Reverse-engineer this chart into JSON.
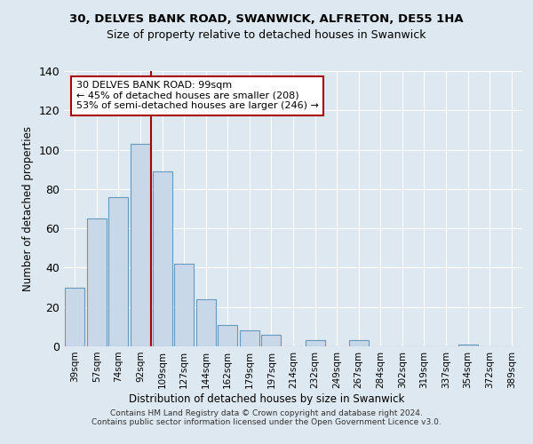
{
  "title": "30, DELVES BANK ROAD, SWANWICK, ALFRETON, DE55 1HA",
  "subtitle": "Size of property relative to detached houses in Swanwick",
  "xlabel": "Distribution of detached houses by size in Swanwick",
  "ylabel": "Number of detached properties",
  "bar_labels": [
    "39sqm",
    "57sqm",
    "74sqm",
    "92sqm",
    "109sqm",
    "127sqm",
    "144sqm",
    "162sqm",
    "179sqm",
    "197sqm",
    "214sqm",
    "232sqm",
    "249sqm",
    "267sqm",
    "284sqm",
    "302sqm",
    "319sqm",
    "337sqm",
    "354sqm",
    "372sqm",
    "389sqm"
  ],
  "bar_values": [
    30,
    65,
    76,
    103,
    89,
    42,
    24,
    11,
    8,
    6,
    0,
    3,
    0,
    3,
    0,
    0,
    0,
    0,
    1,
    0,
    0
  ],
  "bar_color": "#c8d8e8",
  "bar_edge_color": "#6699bb",
  "ylim": [
    0,
    140
  ],
  "yticks": [
    0,
    20,
    40,
    60,
    80,
    100,
    120,
    140
  ],
  "vline_index": 3.5,
  "vline_color": "#aa0000",
  "annotation_title": "30 DELVES BANK ROAD: 99sqm",
  "annotation_line1": "← 45% of detached houses are smaller (208)",
  "annotation_line2": "53% of semi-detached houses are larger (246) →",
  "annotation_box_color": "#ffffff",
  "annotation_box_edge": "#aa0000",
  "background_color": "#dde8f0",
  "footer_line1": "Contains HM Land Registry data © Crown copyright and database right 2024.",
  "footer_line2": "Contains public sector information licensed under the Open Government Licence v3.0."
}
